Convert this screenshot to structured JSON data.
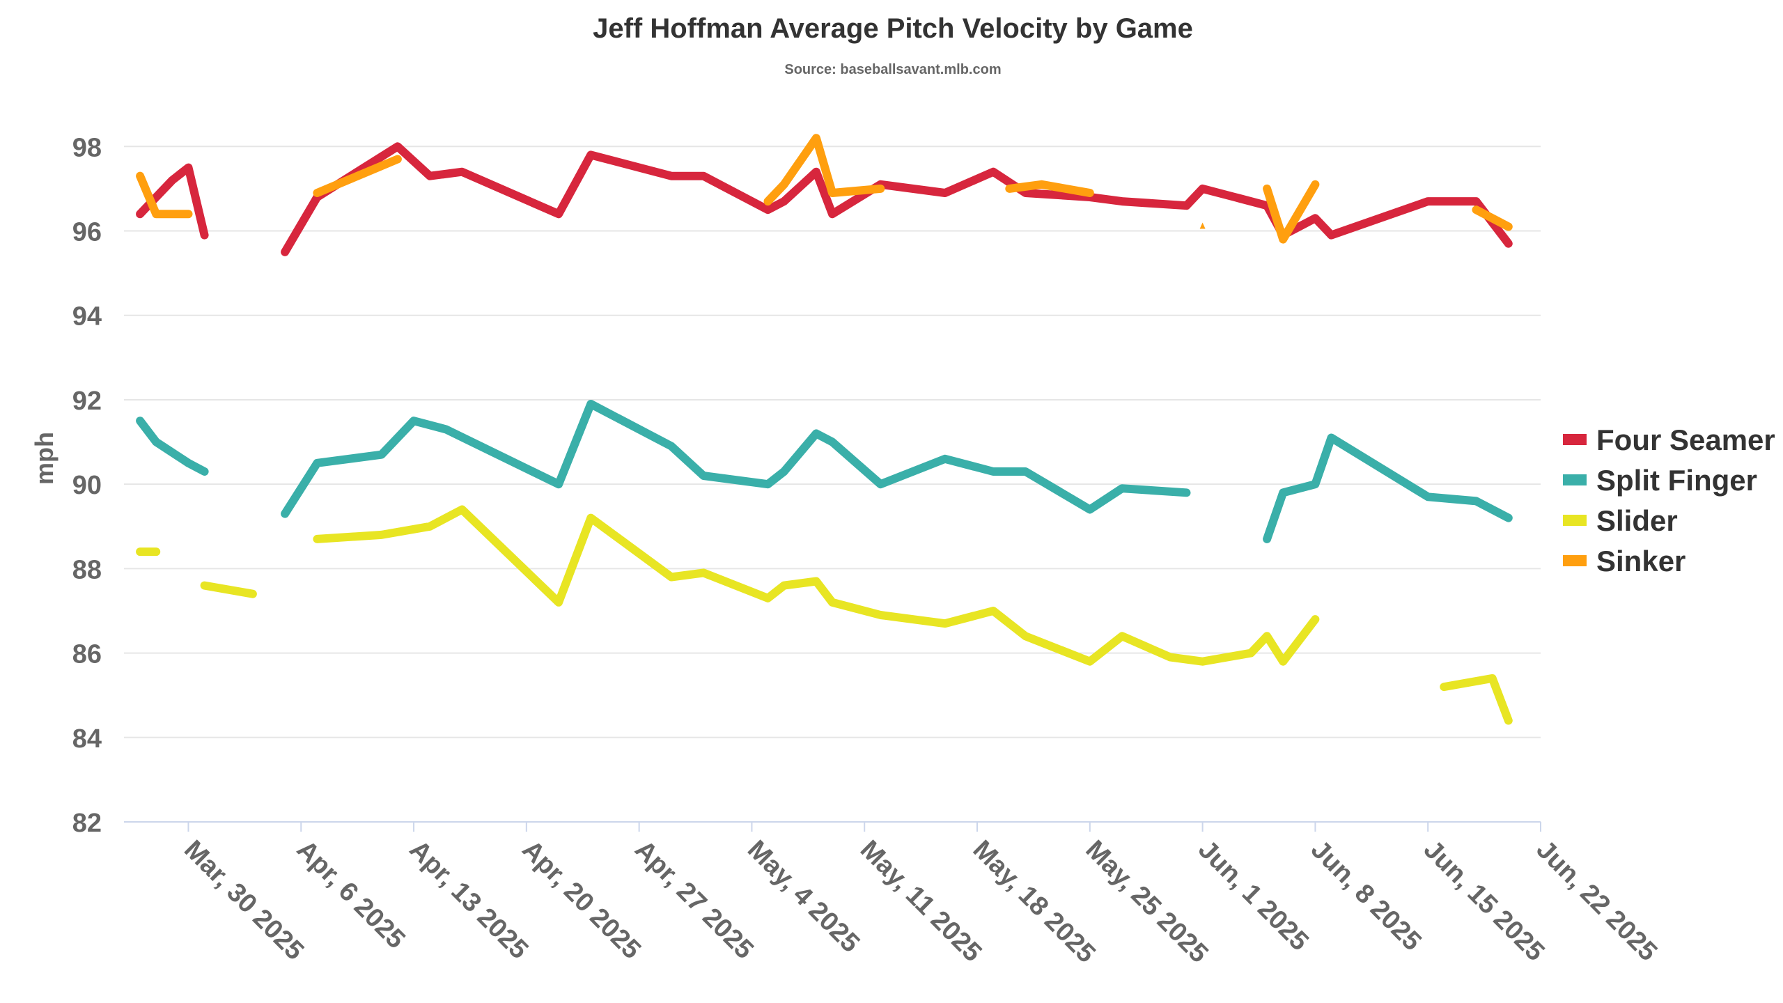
{
  "chart_data": {
    "type": "line",
    "title": "Jeff Hoffman Average Pitch Velocity by Game",
    "subtitle": "Source: baseballsavant.mlb.com",
    "xlabel": "",
    "ylabel": "mph",
    "ylim": [
      82,
      98.5
    ],
    "yticks": [
      82,
      84,
      86,
      88,
      90,
      92,
      94,
      96,
      98
    ],
    "xlim": [
      "2025-03-26",
      "2025-06-22"
    ],
    "xticks": [
      {
        "date": "2025-03-30",
        "label": "Mar, 30 2025"
      },
      {
        "date": "2025-04-06",
        "label": "Apr, 6 2025"
      },
      {
        "date": "2025-04-13",
        "label": "Apr, 13 2025"
      },
      {
        "date": "2025-04-20",
        "label": "Apr, 20 2025"
      },
      {
        "date": "2025-04-27",
        "label": "Apr, 27 2025"
      },
      {
        "date": "2025-05-04",
        "label": "May, 4 2025"
      },
      {
        "date": "2025-05-11",
        "label": "May, 11 2025"
      },
      {
        "date": "2025-05-18",
        "label": "May, 18 2025"
      },
      {
        "date": "2025-05-25",
        "label": "May, 25 2025"
      },
      {
        "date": "2025-06-01",
        "label": "Jun, 1 2025"
      },
      {
        "date": "2025-06-08",
        "label": "Jun, 8 2025"
      },
      {
        "date": "2025-06-15",
        "label": "Jun, 15 2025"
      },
      {
        "date": "2025-06-22",
        "label": "Jun, 22 2025"
      }
    ],
    "grid": true,
    "legend_position": "right",
    "series": [
      {
        "name": "Four Seamer",
        "color": "#d7263d",
        "points": [
          [
            "2025-03-27",
            96.4
          ],
          [
            "2025-03-28",
            96.8
          ],
          [
            "2025-03-29",
            97.2
          ],
          [
            "2025-03-30",
            97.5
          ],
          [
            "2025-03-31",
            95.9
          ],
          null,
          [
            "2025-04-05",
            95.5
          ],
          [
            "2025-04-07",
            96.8
          ],
          [
            "2025-04-12",
            98.0
          ],
          [
            "2025-04-14",
            97.3
          ],
          [
            "2025-04-16",
            97.4
          ],
          [
            "2025-04-22",
            96.4
          ],
          [
            "2025-04-24",
            97.8
          ],
          [
            "2025-04-29",
            97.3
          ],
          [
            "2025-05-01",
            97.3
          ],
          [
            "2025-05-05",
            96.5
          ],
          [
            "2025-05-06",
            96.7
          ],
          [
            "2025-05-08",
            97.4
          ],
          [
            "2025-05-09",
            96.4
          ],
          [
            "2025-05-12",
            97.1
          ],
          [
            "2025-05-16",
            96.9
          ],
          [
            "2025-05-19",
            97.4
          ],
          [
            "2025-05-21",
            96.9
          ],
          [
            "2025-05-25",
            96.8
          ],
          [
            "2025-05-27",
            96.7
          ],
          [
            "2025-05-31",
            96.6
          ],
          [
            "2025-06-01",
            97.0
          ],
          [
            "2025-06-03",
            96.8
          ],
          [
            "2025-06-05",
            96.6
          ],
          [
            "2025-06-06",
            95.9
          ],
          [
            "2025-06-08",
            96.3
          ],
          [
            "2025-06-09",
            95.9
          ],
          [
            "2025-06-15",
            96.7
          ],
          [
            "2025-06-18",
            96.7
          ],
          [
            "2025-06-20",
            95.7
          ]
        ]
      },
      {
        "name": "Split Finger",
        "color": "#3aafa9",
        "points": [
          [
            "2025-03-27",
            91.5
          ],
          [
            "2025-03-28",
            91.0
          ],
          [
            "2025-03-30",
            90.5
          ],
          [
            "2025-03-31",
            90.3
          ],
          null,
          [
            "2025-04-05",
            89.3
          ],
          [
            "2025-04-07",
            90.5
          ],
          [
            "2025-04-11",
            90.7
          ],
          [
            "2025-04-13",
            91.5
          ],
          [
            "2025-04-15",
            91.3
          ],
          [
            "2025-04-22",
            90.0
          ],
          [
            "2025-04-24",
            91.9
          ],
          [
            "2025-04-29",
            90.9
          ],
          [
            "2025-05-01",
            90.2
          ],
          [
            "2025-05-05",
            90.0
          ],
          [
            "2025-05-06",
            90.3
          ],
          [
            "2025-05-08",
            91.2
          ],
          [
            "2025-05-09",
            91.0
          ],
          [
            "2025-05-12",
            90.0
          ],
          [
            "2025-05-16",
            90.6
          ],
          [
            "2025-05-19",
            90.3
          ],
          [
            "2025-05-21",
            90.3
          ],
          [
            "2025-05-25",
            89.4
          ],
          [
            "2025-05-27",
            89.9
          ],
          [
            "2025-05-31",
            89.8
          ],
          null,
          [
            "2025-06-05",
            88.7
          ],
          [
            "2025-06-06",
            89.8
          ],
          [
            "2025-06-08",
            90.0
          ],
          [
            "2025-06-09",
            91.1
          ],
          [
            "2025-06-15",
            89.7
          ],
          [
            "2025-06-18",
            89.6
          ],
          [
            "2025-06-20",
            89.2
          ]
        ]
      },
      {
        "name": "Slider",
        "color": "#e8e523",
        "points": [
          [
            "2025-03-27",
            88.4
          ],
          [
            "2025-03-28",
            88.4
          ],
          null,
          [
            "2025-03-31",
            87.6
          ],
          [
            "2025-04-03",
            87.4
          ],
          null,
          [
            "2025-04-07",
            88.7
          ],
          [
            "2025-04-11",
            88.8
          ],
          [
            "2025-04-14",
            89.0
          ],
          [
            "2025-04-16",
            89.4
          ],
          [
            "2025-04-22",
            87.2
          ],
          [
            "2025-04-24",
            89.2
          ],
          [
            "2025-04-29",
            87.8
          ],
          [
            "2025-05-01",
            87.9
          ],
          [
            "2025-05-05",
            87.3
          ],
          [
            "2025-05-06",
            87.6
          ],
          [
            "2025-05-08",
            87.7
          ],
          [
            "2025-05-09",
            87.2
          ],
          [
            "2025-05-12",
            86.9
          ],
          [
            "2025-05-16",
            86.7
          ],
          [
            "2025-05-19",
            87.0
          ],
          [
            "2025-05-21",
            86.4
          ],
          [
            "2025-05-25",
            85.8
          ],
          [
            "2025-05-27",
            86.4
          ],
          [
            "2025-05-30",
            85.9
          ],
          [
            "2025-06-01",
            85.8
          ],
          [
            "2025-06-04",
            86.0
          ],
          [
            "2025-06-05",
            86.4
          ],
          [
            "2025-06-06",
            85.8
          ],
          [
            "2025-06-08",
            86.8
          ],
          null,
          [
            "2025-06-16",
            85.2
          ],
          [
            "2025-06-19",
            85.4
          ],
          [
            "2025-06-20",
            84.4
          ]
        ]
      },
      {
        "name": "Sinker",
        "color": "#ff9f0f",
        "points": [
          [
            "2025-03-27",
            97.3
          ],
          [
            "2025-03-28",
            96.4
          ],
          [
            "2025-03-30",
            96.4
          ],
          null,
          [
            "2025-04-07",
            96.9
          ],
          [
            "2025-04-12",
            97.7
          ],
          null,
          [
            "2025-05-05",
            96.7
          ],
          [
            "2025-05-06",
            97.1
          ],
          [
            "2025-05-08",
            98.2
          ],
          [
            "2025-05-09",
            96.9
          ],
          [
            "2025-05-12",
            97.0
          ],
          null,
          [
            "2025-05-20",
            97.0
          ],
          [
            "2025-05-22",
            97.1
          ],
          [
            "2025-05-25",
            96.9
          ],
          null,
          [
            "2025-06-05",
            97.0
          ],
          [
            "2025-06-06",
            95.8
          ],
          [
            "2025-06-08",
            97.1
          ],
          null,
          [
            "2025-06-18",
            96.5
          ],
          [
            "2025-06-20",
            96.1
          ]
        ],
        "markers": [
          [
            "2025-06-01",
            96.1
          ]
        ]
      }
    ]
  }
}
